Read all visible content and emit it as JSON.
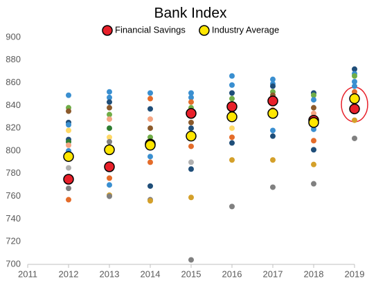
{
  "chart_data": {
    "type": "scatter",
    "title": "Bank Index",
    "xlim": [
      2011,
      2019
    ],
    "xticks": [
      2011,
      2012,
      2013,
      2014,
      2015,
      2016,
      2017,
      2018,
      2019
    ],
    "ylim": [
      700,
      900
    ],
    "yticks": [
      700,
      720,
      740,
      760,
      780,
      800,
      820,
      840,
      860,
      880,
      900
    ],
    "series": [
      {
        "x": [
          2012,
          2012,
          2012,
          2012,
          2012,
          2012,
          2012,
          2012,
          2012,
          2012,
          2012,
          2012,
          2012,
          2013,
          2013,
          2013,
          2013,
          2013,
          2013,
          2013,
          2013,
          2013,
          2013,
          2013,
          2013,
          2013,
          2014,
          2014,
          2014,
          2014,
          2014,
          2014,
          2014,
          2014,
          2014,
          2014,
          2014,
          2014,
          2015,
          2015,
          2015,
          2015,
          2015,
          2015,
          2015,
          2015,
          2015,
          2015,
          2015,
          2016,
          2016,
          2016,
          2016,
          2016,
          2016,
          2016,
          2016,
          2016,
          2016,
          2017,
          2017,
          2017,
          2017,
          2017,
          2017,
          2017,
          2017,
          2017,
          2017,
          2018,
          2018,
          2018,
          2018,
          2018,
          2018,
          2018,
          2018,
          2018,
          2018,
          2019,
          2019,
          2019,
          2019,
          2019,
          2019,
          2019,
          2019
        ],
        "values": [
          849,
          838,
          835,
          825,
          823,
          818,
          810,
          808,
          800,
          805,
          785,
          767,
          757,
          852,
          847,
          843,
          838,
          832,
          828,
          820,
          812,
          808,
          776,
          770,
          761,
          760,
          851,
          846,
          837,
          828,
          820,
          812,
          807,
          795,
          790,
          769,
          757,
          756,
          851,
          847,
          843,
          838,
          825,
          820,
          804,
          790,
          784,
          759,
          704,
          866,
          858,
          851,
          846,
          834,
          820,
          812,
          807,
          792,
          751,
          863,
          859,
          857,
          852,
          849,
          836,
          818,
          813,
          792,
          768,
          851,
          849,
          845,
          838,
          833,
          819,
          809,
          801,
          788,
          771,
          872,
          868,
          866,
          861,
          857,
          852,
          827,
          811
        ],
        "colors": [
          "#3a8fd0",
          "#70ad47",
          "#8b5a2b",
          "#1f4e79",
          "#3a8fd0",
          "#ffd966",
          "#1f4e79",
          "#2e7d32",
          "#3a8fd0",
          "#f4a582",
          "#b0b0b0",
          "#808080",
          "#e46c2a",
          "#3a8fd0",
          "#3a8fd0",
          "#1f4e79",
          "#8b5a2b",
          "#70ad47",
          "#f4a582",
          "#2e7d32",
          "#ffd966",
          "#808080",
          "#e46c2a",
          "#3a8fd0",
          "#d4a02a",
          "#808080",
          "#3a8fd0",
          "#e46c2a",
          "#1f4e79",
          "#f4a582",
          "#8b5a2b",
          "#70ad47",
          "#1f4e79",
          "#3a8fd0",
          "#e46c2a",
          "#1f4e79",
          "#808080",
          "#d4a02a",
          "#3a8fd0",
          "#3a8fd0",
          "#e46c2a",
          "#70ad47",
          "#8b5a2b",
          "#1f4e79",
          "#e46c2a",
          "#b0b0b0",
          "#1f4e79",
          "#d4a02a",
          "#808080",
          "#3a8fd0",
          "#3a8fd0",
          "#1f4e79",
          "#70ad47",
          "#8b5a2b",
          "#ffd966",
          "#e46c2a",
          "#1f4e79",
          "#d4a02a",
          "#808080",
          "#3a8fd0",
          "#3a8fd0",
          "#1f4e79",
          "#70ad47",
          "#8b5a2b",
          "#e46c2a",
          "#3a8fd0",
          "#1f4e79",
          "#d4a02a",
          "#808080",
          "#1f4e79",
          "#70ad47",
          "#3a8fd0",
          "#8b5a2b",
          "#f4a582",
          "#3a8fd0",
          "#e46c2a",
          "#1f4e79",
          "#d4a02a",
          "#808080",
          "#1f4e79",
          "#3a8fd0",
          "#70ad47",
          "#3a8fd0",
          "#3a8fd0",
          "#e46c2a",
          "#d4a02a",
          "#808080"
        ]
      },
      {
        "name": "Financial Savings",
        "color": "#e8202a",
        "x": [
          2012,
          2013,
          2014,
          2015,
          2016,
          2017,
          2018,
          2019
        ],
        "values": [
          775,
          786,
          806,
          833,
          839,
          844,
          827,
          837
        ]
      },
      {
        "name": "Industry Average",
        "color": "#ffe600",
        "x": [
          2012,
          2013,
          2014,
          2015,
          2016,
          2017,
          2018,
          2019
        ],
        "values": [
          795,
          801,
          805,
          813,
          830,
          833,
          825,
          846
        ]
      }
    ]
  }
}
